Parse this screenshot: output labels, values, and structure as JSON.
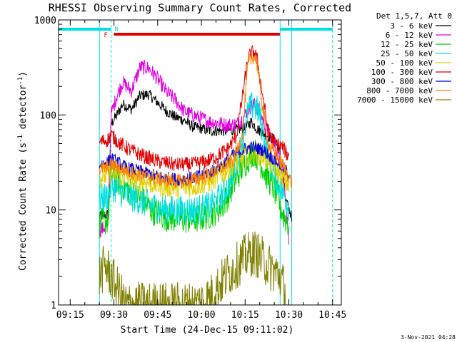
{
  "chart_data": {
    "type": "line",
    "title": "RHESSI Observing Summary Count Rates, Corrected",
    "xlabel": "Start Time (24-Dec-15 09:11:02)",
    "ylabel": "Corrected Count Rate (s",
    "ylabel_sup": "-1",
    "ylabel_mid": " detector",
    "ylabel_sup2": "-1",
    "ylabel_end": ")",
    "footer": "3-Nov-2021 04:28",
    "x_ticks": [
      "09:15",
      "09:30",
      "09:45",
      "10:00",
      "10:15",
      "10:30",
      "10:45"
    ],
    "y_ticks": [
      "1",
      "10",
      "100",
      "1000"
    ],
    "y_scale": "log",
    "xlim": [
      "09:11",
      "10:48"
    ],
    "ylim": [
      1,
      1000
    ],
    "legend_title": "Det 1,5,7, Att 0",
    "legend_position": "top-right",
    "flags": {
      "night_label": "N",
      "flare_label": "F",
      "night_color": "#00e0e0",
      "flare_color": "#e00000",
      "night_intervals": [
        [
          "09:11",
          "09:29"
        ],
        [
          "10:27",
          "10:45"
        ]
      ],
      "flare_interval": [
        "09:30",
        "10:27"
      ],
      "data_edges": [
        "09:25",
        "09:29",
        "10:27",
        "10:31"
      ]
    },
    "series": [
      {
        "name": "3 - 6 keV",
        "color": "#000000",
        "points": [
          [
            "09:25",
            8.5
          ],
          [
            "09:28",
            9
          ],
          [
            "09:29",
            80
          ],
          [
            "09:31",
            100
          ],
          [
            "09:33",
            130
          ],
          [
            "09:36",
            115
          ],
          [
            "09:39",
            160
          ],
          [
            "09:42",
            165
          ],
          [
            "09:45",
            135
          ],
          [
            "09:48",
            110
          ],
          [
            "09:51",
            95
          ],
          [
            "09:54",
            88
          ],
          [
            "09:57",
            75
          ],
          [
            "10:00",
            72
          ],
          [
            "10:03",
            68
          ],
          [
            "10:06",
            68
          ],
          [
            "10:09",
            68
          ],
          [
            "10:12",
            70
          ],
          [
            "10:15",
            72
          ],
          [
            "10:17",
            85
          ],
          [
            "10:19",
            72
          ],
          [
            "10:21",
            65
          ],
          [
            "10:23",
            60
          ],
          [
            "10:25",
            55
          ],
          [
            "10:27",
            40
          ],
          [
            "10:29",
            12
          ],
          [
            "10:31",
            8.5
          ]
        ]
      },
      {
        "name": "6 - 12 keV",
        "color": "#e000e0",
        "points": [
          [
            "09:25",
            6
          ],
          [
            "09:28",
            7
          ],
          [
            "09:29",
            100
          ],
          [
            "09:31",
            160
          ],
          [
            "09:33",
            220
          ],
          [
            "09:36",
            180
          ],
          [
            "09:39",
            320
          ],
          [
            "09:42",
            310
          ],
          [
            "09:45",
            240
          ],
          [
            "09:48",
            175
          ],
          [
            "09:51",
            145
          ],
          [
            "09:54",
            110
          ],
          [
            "09:57",
            100
          ],
          [
            "10:00",
            92
          ],
          [
            "10:03",
            85
          ],
          [
            "10:06",
            82
          ],
          [
            "10:09",
            78
          ],
          [
            "10:12",
            80
          ],
          [
            "10:14",
            90
          ],
          [
            "10:16",
            115
          ],
          [
            "10:18",
            130
          ],
          [
            "10:20",
            110
          ],
          [
            "10:22",
            75
          ],
          [
            "10:24",
            55
          ],
          [
            "10:26",
            42
          ],
          [
            "10:28",
            25
          ],
          [
            "10:30",
            5
          ]
        ]
      },
      {
        "name": "12 - 25 keV",
        "color": "#00d000",
        "points": [
          [
            "09:25",
            7
          ],
          [
            "09:28",
            8
          ],
          [
            "09:29",
            24
          ],
          [
            "09:33",
            18
          ],
          [
            "09:38",
            14
          ],
          [
            "09:43",
            10
          ],
          [
            "09:48",
            8.5
          ],
          [
            "09:53",
            8
          ],
          [
            "09:58",
            8
          ],
          [
            "10:03",
            9
          ],
          [
            "10:07",
            11
          ],
          [
            "10:10",
            16
          ],
          [
            "10:13",
            25
          ],
          [
            "10:16",
            35
          ],
          [
            "10:18",
            42
          ],
          [
            "10:20",
            33
          ],
          [
            "10:22",
            24
          ],
          [
            "10:24",
            19
          ],
          [
            "10:26",
            14
          ],
          [
            "10:28",
            9
          ],
          [
            "10:30",
            7
          ]
        ]
      },
      {
        "name": "25 - 50 keV",
        "color": "#00e0e0",
        "points": [
          [
            "09:25",
            13
          ],
          [
            "09:28",
            14
          ],
          [
            "09:29",
            18
          ],
          [
            "09:33",
            15
          ],
          [
            "09:38",
            13
          ],
          [
            "09:43",
            11
          ],
          [
            "09:48",
            10
          ],
          [
            "09:53",
            10
          ],
          [
            "09:58",
            10
          ],
          [
            "10:03",
            11
          ],
          [
            "10:07",
            14
          ],
          [
            "10:10",
            20
          ],
          [
            "10:13",
            40
          ],
          [
            "10:16",
            110
          ],
          [
            "10:18",
            130
          ],
          [
            "10:20",
            100
          ],
          [
            "10:22",
            45
          ],
          [
            "10:24",
            28
          ],
          [
            "10:26",
            20
          ],
          [
            "10:28",
            15
          ],
          [
            "10:30",
            11
          ]
        ]
      },
      {
        "name": "50 - 100 keV",
        "color": "#e0d000",
        "points": [
          [
            "09:25",
            22
          ],
          [
            "09:28",
            23
          ],
          [
            "09:29",
            25
          ],
          [
            "09:34",
            22
          ],
          [
            "09:40",
            20
          ],
          [
            "09:46",
            18
          ],
          [
            "09:52",
            17
          ],
          [
            "09:58",
            18
          ],
          [
            "10:03",
            20
          ],
          [
            "10:07",
            24
          ],
          [
            "10:11",
            30
          ],
          [
            "10:15",
            37
          ],
          [
            "10:18",
            40
          ],
          [
            "10:21",
            37
          ],
          [
            "10:24",
            30
          ],
          [
            "10:27",
            24
          ],
          [
            "10:30",
            18
          ]
        ]
      },
      {
        "name": "100 - 300 keV",
        "color": "#e00000",
        "points": [
          [
            "09:25",
            52
          ],
          [
            "09:28",
            55
          ],
          [
            "09:29",
            62
          ],
          [
            "09:32",
            50
          ],
          [
            "09:36",
            42
          ],
          [
            "09:41",
            36
          ],
          [
            "09:46",
            32
          ],
          [
            "09:51",
            30
          ],
          [
            "09:56",
            30
          ],
          [
            "10:01",
            32
          ],
          [
            "10:05",
            36
          ],
          [
            "10:09",
            44
          ],
          [
            "10:12",
            60
          ],
          [
            "10:14",
            150
          ],
          [
            "10:16",
            400
          ],
          [
            "10:18",
            470
          ],
          [
            "10:19",
            400
          ],
          [
            "10:21",
            160
          ],
          [
            "10:23",
            65
          ],
          [
            "10:25",
            52
          ],
          [
            "10:28",
            45
          ],
          [
            "10:30",
            36
          ]
        ]
      },
      {
        "name": "300 - 800 keV",
        "color": "#0000e0",
        "points": [
          [
            "09:25",
            30
          ],
          [
            "09:28",
            32
          ],
          [
            "09:29",
            35
          ],
          [
            "09:34",
            28
          ],
          [
            "09:40",
            25
          ],
          [
            "09:46",
            22
          ],
          [
            "09:52",
            21
          ],
          [
            "09:58",
            22
          ],
          [
            "10:03",
            25
          ],
          [
            "10:07",
            30
          ],
          [
            "10:11",
            38
          ],
          [
            "10:15",
            44
          ],
          [
            "10:18",
            46
          ],
          [
            "10:21",
            43
          ],
          [
            "10:24",
            36
          ],
          [
            "10:27",
            30
          ],
          [
            "10:30",
            24
          ]
        ]
      },
      {
        "name": "800 - 7000 keV",
        "color": "#ff8000",
        "points": [
          [
            "09:25",
            27
          ],
          [
            "09:28",
            28
          ],
          [
            "09:29",
            30
          ],
          [
            "09:34",
            26
          ],
          [
            "09:40",
            23
          ],
          [
            "09:46",
            21
          ],
          [
            "09:52",
            20
          ],
          [
            "09:58",
            21
          ],
          [
            "10:03",
            24
          ],
          [
            "10:07",
            28
          ],
          [
            "10:11",
            34
          ],
          [
            "10:14",
            60
          ],
          [
            "10:16",
            350
          ],
          [
            "10:18",
            420
          ],
          [
            "10:19",
            360
          ],
          [
            "10:21",
            120
          ],
          [
            "10:23",
            48
          ],
          [
            "10:26",
            36
          ],
          [
            "10:29",
            26
          ],
          [
            "10:31",
            19
          ]
        ]
      },
      {
        "name": "7000 - 15000 keV",
        "color": "#808000",
        "points": [
          [
            "09:25",
            2
          ],
          [
            "09:27",
            2.6
          ],
          [
            "09:29",
            2
          ],
          [
            "09:31",
            1.5
          ],
          [
            "09:34",
            1
          ],
          [
            "09:38",
            1
          ],
          [
            "09:43",
            1
          ],
          [
            "09:48",
            1
          ],
          [
            "09:53",
            1
          ],
          [
            "09:58",
            1
          ],
          [
            "10:03",
            1.2
          ],
          [
            "10:06",
            1.6
          ],
          [
            "10:09",
            2.1
          ],
          [
            "10:12",
            2.6
          ],
          [
            "10:15",
            3.2
          ],
          [
            "10:18",
            3.6
          ],
          [
            "10:21",
            3
          ],
          [
            "10:24",
            2.4
          ],
          [
            "10:27",
            2
          ],
          [
            "10:29",
            1.3
          ]
        ]
      }
    ]
  }
}
